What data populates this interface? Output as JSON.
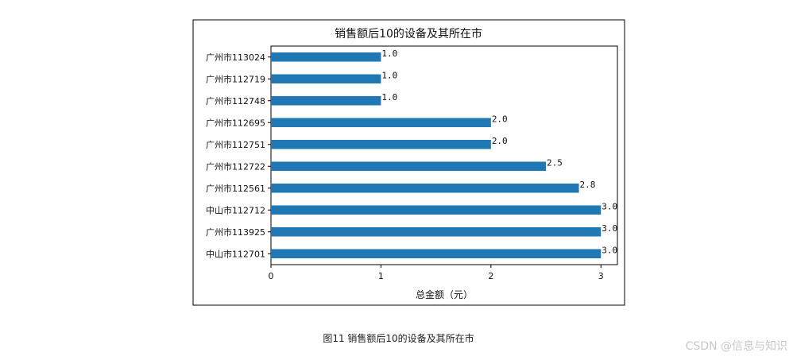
{
  "chart_data": {
    "type": "bar",
    "orientation": "horizontal",
    "title": "销售额后10的设备及其所在市",
    "xlabel": "总金额（元）",
    "ylabel": "",
    "xlim": [
      0,
      3.15
    ],
    "xticks": [
      0,
      1,
      2,
      3
    ],
    "categories": [
      "广州市113024",
      "广州市112719",
      "广州市112748",
      "广州市112695",
      "广州市112751",
      "广州市112722",
      "广州市112561",
      "中山市112712",
      "广州市113925",
      "中山市112701"
    ],
    "values": [
      1.0,
      1.0,
      1.0,
      2.0,
      2.0,
      2.5,
      2.8,
      3.0,
      3.0,
      3.0
    ],
    "value_labels": [
      "1.0",
      "1.0",
      "1.0",
      "2.0",
      "2.0",
      "2.5",
      "2.8",
      "3.0",
      "3.0",
      "3.0"
    ],
    "bar_color": "#1f77b4",
    "grid": false,
    "legend": "none"
  },
  "caption": "图11 销售额后10的设备及其所在市",
  "watermark": "CSDN @信息与知识"
}
